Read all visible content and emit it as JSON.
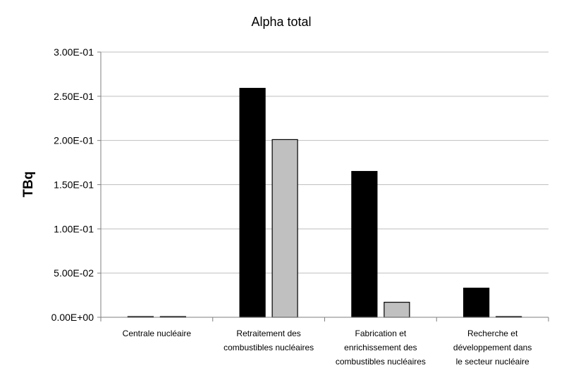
{
  "chart_data": {
    "type": "bar",
    "title": "Alpha total",
    "xlabel": "",
    "ylabel": "TBq",
    "ylim": [
      0,
      0.3
    ],
    "yticks": [
      "0.00E+00",
      "5.00E-02",
      "1.00E-01",
      "1.50E-01",
      "2.00E-01",
      "2.50E-01",
      "3.00E-01"
    ],
    "ytick_values": [
      0,
      0.05,
      0.1,
      0.15,
      0.2,
      0.25,
      0.3
    ],
    "grid": true,
    "legend": "none",
    "categories": [
      [
        "Centrale nucléaire"
      ],
      [
        "Retraitement des",
        "combustibles nucléaires"
      ],
      [
        "Fabrication et",
        "enrichissement des",
        "combustibles nucléaires"
      ],
      [
        "Recherche et",
        "développement dans",
        "le secteur nucléaire"
      ]
    ],
    "series": [
      {
        "color": "#000000",
        "values": [
          0.0005,
          0.259,
          0.165,
          0.033
        ]
      },
      {
        "color": "#c0c0c0",
        "values": [
          0.0005,
          0.201,
          0.017,
          0.0005
        ]
      }
    ]
  }
}
